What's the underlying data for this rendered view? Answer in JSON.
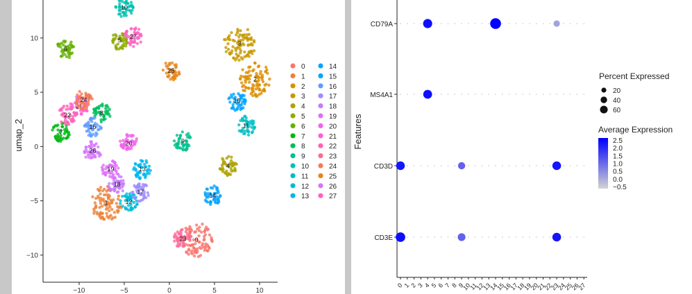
{
  "chart_data": [
    {
      "type": "scatter",
      "ylabel": "umap_2",
      "xlim": [
        -14,
        12
      ],
      "ylim": [
        -12.5,
        13.5
      ],
      "x_ticks": [
        "−10",
        "−5",
        "0",
        "5",
        "10"
      ],
      "x_tick_values": [
        -10,
        -5,
        0,
        5,
        10
      ],
      "y_ticks": [
        "10",
        "5",
        "0",
        "−5",
        "−10"
      ],
      "y_tick_values": [
        10,
        5,
        0,
        -5,
        -10
      ],
      "legend_position": "right",
      "clusters": [
        {
          "label": "0",
          "color": "#F8766D",
          "x": 3.0,
          "y": -8.6
        },
        {
          "label": "1",
          "color": "#EC8239",
          "x": -7.0,
          "y": -5.2
        },
        {
          "label": "2",
          "color": "#DB8E00",
          "x": 9.5,
          "y": 6.2
        },
        {
          "label": "3",
          "color": "#C79800",
          "x": 7.8,
          "y": 9.5
        },
        {
          "label": "4",
          "color": "#AEA200",
          "x": 6.5,
          "y": -1.8
        },
        {
          "label": "5",
          "color": "#8FAA00",
          "x": -5.5,
          "y": 9.8
        },
        {
          "label": "6",
          "color": "#64B200",
          "x": -11.5,
          "y": 9.0
        },
        {
          "label": "7",
          "color": "#00B813",
          "x": -12.0,
          "y": 1.3
        },
        {
          "label": "8",
          "color": "#00BD5C",
          "x": -7.5,
          "y": 3.1
        },
        {
          "label": "9",
          "color": "#00C08E",
          "x": 1.5,
          "y": 0.5
        },
        {
          "label": "10",
          "color": "#00C1B2",
          "x": -5.0,
          "y": 12.8
        },
        {
          "label": "11",
          "color": "#00BFC4",
          "x": 8.5,
          "y": 1.9
        },
        {
          "label": "12",
          "color": "#00BCD8",
          "x": -4.5,
          "y": -5.1
        },
        {
          "label": "13",
          "color": "#00B6EB",
          "x": -3.0,
          "y": -2.1
        },
        {
          "label": "14",
          "color": "#06A4FF",
          "x": 4.8,
          "y": -4.5
        },
        {
          "label": "15",
          "color": "#00A5FF",
          "x": 7.5,
          "y": 4.2
        },
        {
          "label": "16",
          "color": "#619CFF",
          "x": -8.5,
          "y": 1.8
        },
        {
          "label": "17",
          "color": "#9F8CFF",
          "x": -3.2,
          "y": -4.2
        },
        {
          "label": "18",
          "color": "#C77CFF",
          "x": -5.8,
          "y": -3.5
        },
        {
          "label": "19",
          "color": "#DF70F8",
          "x": -6.5,
          "y": -2.1
        },
        {
          "label": "20",
          "color": "#F066EA",
          "x": -4.5,
          "y": 0.3
        },
        {
          "label": "21",
          "color": "#FC61D5",
          "x": -10.0,
          "y": 3.7
        },
        {
          "label": "22",
          "color": "#FF63B6",
          "x": -11.3,
          "y": 2.9
        },
        {
          "label": "23",
          "color": "#FF6A98",
          "x": 1.5,
          "y": -8.5
        },
        {
          "label": "24",
          "color": "#F37B59",
          "x": -9.5,
          "y": 4.3
        },
        {
          "label": "25",
          "color": "#E7861B",
          "x": 0.2,
          "y": 7.0
        },
        {
          "label": "26",
          "color": "#D575FE",
          "x": -8.5,
          "y": -0.4
        },
        {
          "label": "27",
          "color": "#FF61C3",
          "x": -4.0,
          "y": 10.1
        }
      ],
      "legend_items": [
        "0",
        "1",
        "2",
        "3",
        "4",
        "5",
        "6",
        "7",
        "8",
        "9",
        "10",
        "11",
        "12",
        "13",
        "14",
        "15",
        "16",
        "17",
        "18",
        "19",
        "20",
        "21",
        "22",
        "23",
        "24",
        "25",
        "26",
        "27"
      ]
    },
    {
      "type": "dotplot",
      "ylabel": "Features",
      "features": [
        "CD79A",
        "MS4A1",
        "CD3D",
        "CD3E"
      ],
      "clusters": [
        "0",
        "1",
        "2",
        "3",
        "4",
        "5",
        "6",
        "7",
        "8",
        "9",
        "10",
        "11",
        "12",
        "13",
        "14",
        "15",
        "16",
        "17",
        "18",
        "19",
        "20",
        "21",
        "22",
        "23",
        "24",
        "25",
        "26",
        "27"
      ],
      "size_legend": {
        "title": "Percent Expressed",
        "values": [
          "20",
          "40",
          "60"
        ]
      },
      "color_legend": {
        "title": "Average Expression",
        "ticks": [
          "2.5",
          "2.0",
          "1.5",
          "1.0",
          "0.5",
          "0.0",
          "−0.5"
        ],
        "low_color": "#d3d3d3",
        "high_color": "#0000ff"
      },
      "values": [
        {
          "feature": "CD79A",
          "cluster": "4",
          "pct": 45,
          "avg": 2.3
        },
        {
          "feature": "CD79A",
          "cluster": "14",
          "pct": 68,
          "avg": 2.5
        },
        {
          "feature": "CD79A",
          "cluster": "23",
          "pct": 18,
          "avg": 0.2
        },
        {
          "feature": "MS4A1",
          "cluster": "4",
          "pct": 42,
          "avg": 2.3
        },
        {
          "feature": "CD3D",
          "cluster": "0",
          "pct": 40,
          "avg": 2.2
        },
        {
          "feature": "CD3D",
          "cluster": "9",
          "pct": 25,
          "avg": 1.1
        },
        {
          "feature": "CD3D",
          "cluster": "23",
          "pct": 40,
          "avg": 2.2
        },
        {
          "feature": "CD3E",
          "cluster": "0",
          "pct": 50,
          "avg": 2.3
        },
        {
          "feature": "CD3E",
          "cluster": "9",
          "pct": 30,
          "avg": 1.1
        },
        {
          "feature": "CD3E",
          "cluster": "23",
          "pct": 40,
          "avg": 2.2
        }
      ]
    }
  ]
}
